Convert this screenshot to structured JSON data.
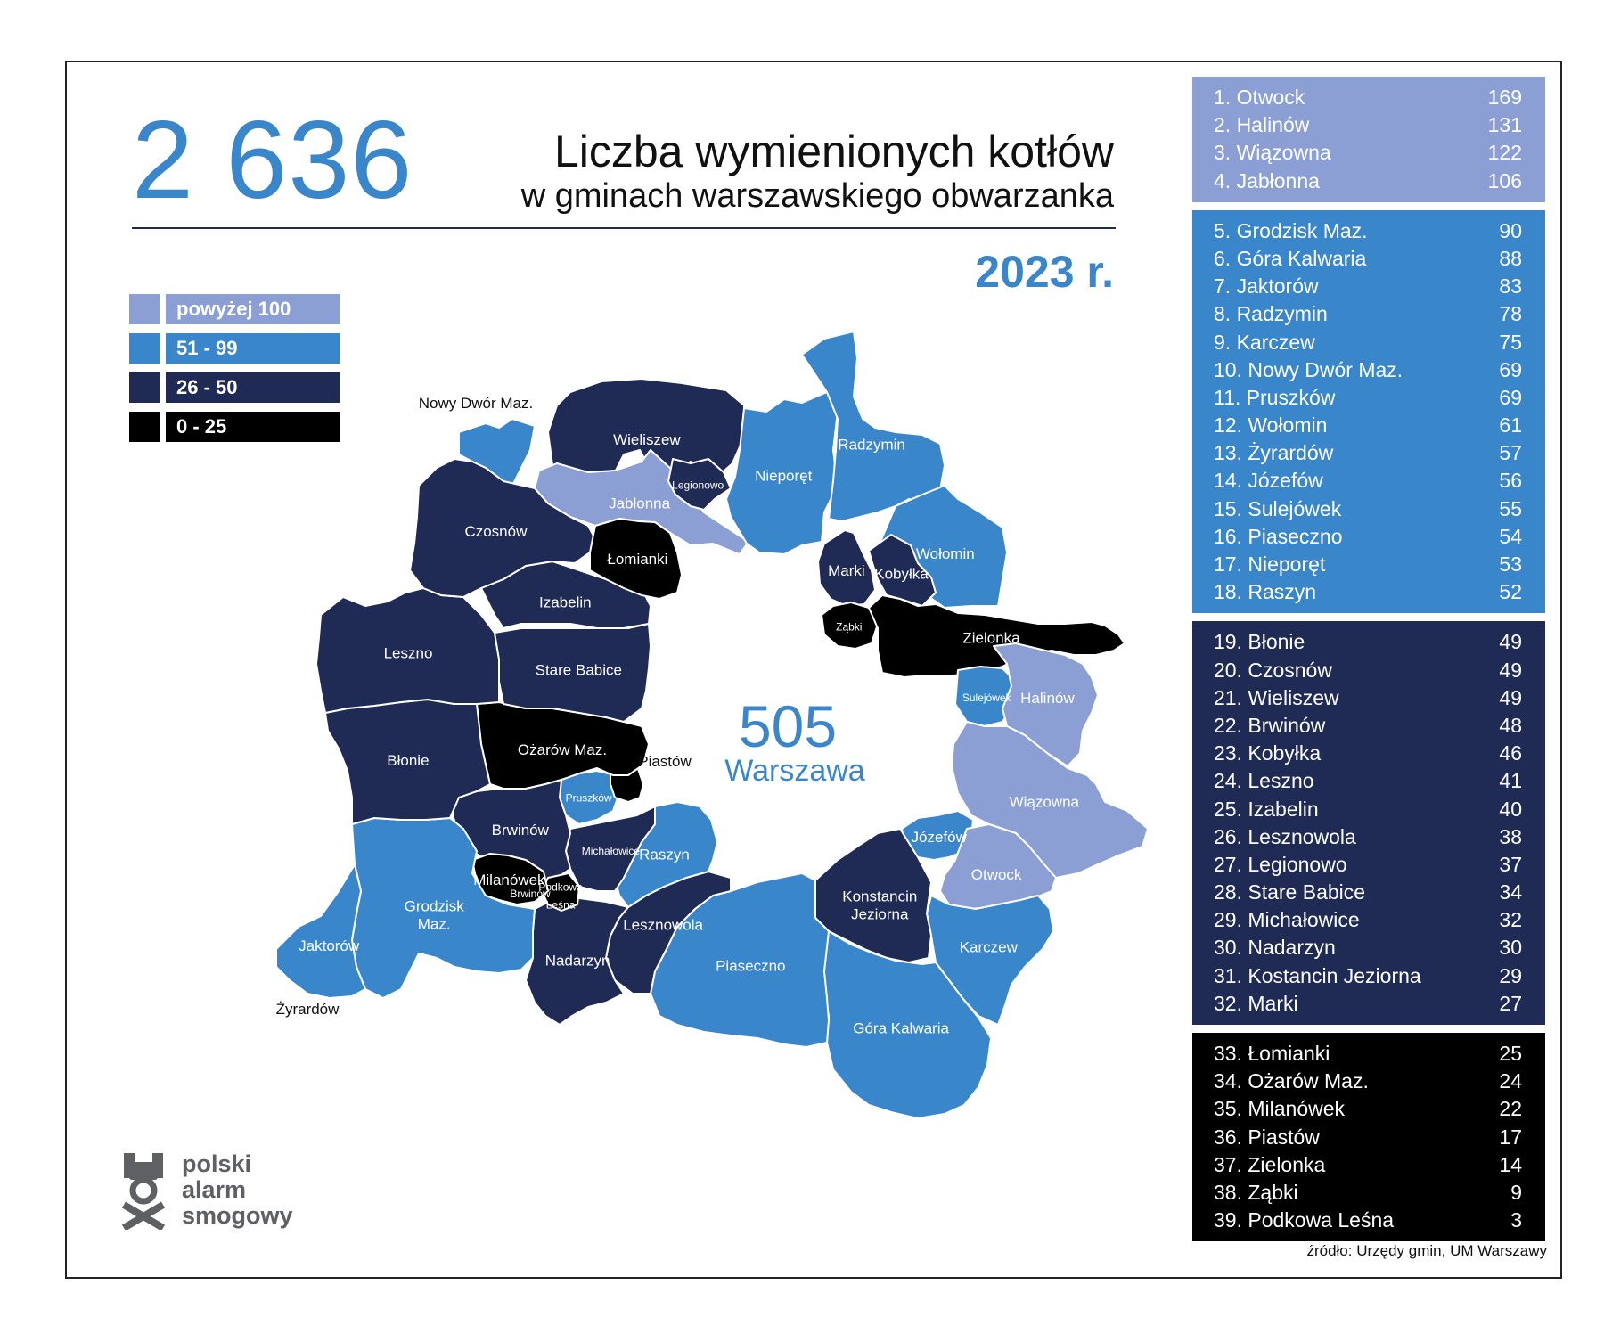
{
  "header": {
    "total": "2 636",
    "title_line1": "Liczba wymienionych kotłów",
    "title_line2": "w gminach warszawskiego obwarzanka",
    "year": "2023 r."
  },
  "colors": {
    "above100": "#8b9fd4",
    "r51_99": "#3a86cb",
    "r26_50": "#1f2a55",
    "r0_25": "#000000",
    "accent": "#3a86cb"
  },
  "legend": [
    {
      "label": "powyżej 100",
      "color": "#8b9fd4"
    },
    {
      "label": "51 - 99",
      "color": "#3a86cb"
    },
    {
      "label": "26 - 50",
      "color": "#1f2a55"
    },
    {
      "label": "0 - 25",
      "color": "#000000"
    }
  ],
  "ranking": [
    {
      "group": "powyżej 100",
      "color": "#8b9fd4",
      "items": [
        {
          "name": "1. Otwock",
          "value": "169"
        },
        {
          "name": "2. Halinów",
          "value": "131"
        },
        {
          "name": "3. Wiązowna",
          "value": "122"
        },
        {
          "name": "4. Jabłonna",
          "value": "106"
        }
      ]
    },
    {
      "group": "51 - 99",
      "color": "#3a86cb",
      "items": [
        {
          "name": "5. Grodzisk Maz.",
          "value": "90"
        },
        {
          "name": "6. Góra Kalwaria",
          "value": "88"
        },
        {
          "name": "7. Jaktorów",
          "value": "83"
        },
        {
          "name": "8. Radzymin",
          "value": "78"
        },
        {
          "name": "9. Karczew",
          "value": "75"
        },
        {
          "name": "10. Nowy Dwór Maz.",
          "value": "69"
        },
        {
          "name": "11. Pruszków",
          "value": "69"
        },
        {
          "name": "12. Wołomin",
          "value": "61"
        },
        {
          "name": "13. Żyrardów",
          "value": "57"
        },
        {
          "name": "14. Józefów",
          "value": "56"
        },
        {
          "name": "15. Sulejówek",
          "value": "55"
        },
        {
          "name": "16. Piaseczno",
          "value": "54"
        },
        {
          "name": "17. Nieporęt",
          "value": "53"
        },
        {
          "name": "18. Raszyn",
          "value": "52"
        }
      ]
    },
    {
      "group": "26 - 50",
      "color": "#1f2a55",
      "items": [
        {
          "name": "19. Błonie",
          "value": "49"
        },
        {
          "name": "20. Czosnów",
          "value": "49"
        },
        {
          "name": "21. Wieliszew",
          "value": "49"
        },
        {
          "name": "22. Brwinów",
          "value": "48"
        },
        {
          "name": "23. Kobyłka",
          "value": "46"
        },
        {
          "name": "24. Leszno",
          "value": "41"
        },
        {
          "name": "25. Izabelin",
          "value": "40"
        },
        {
          "name": "26. Lesznowola",
          "value": "38"
        },
        {
          "name": "27. Legionowo",
          "value": "37"
        },
        {
          "name": "28. Stare Babice",
          "value": "34"
        },
        {
          "name": "29. Michałowice",
          "value": "32"
        },
        {
          "name": "30. Nadarzyn",
          "value": "30"
        },
        {
          "name": "31. Kostancin Jeziorna",
          "value": "29"
        },
        {
          "name": "32. Marki",
          "value": "27"
        }
      ]
    },
    {
      "group": "0 - 25",
      "color": "#000000",
      "items": [
        {
          "name": "33. Łomianki",
          "value": "25"
        },
        {
          "name": "34. Ożarów Maz.",
          "value": "24"
        },
        {
          "name": "35. Milanówek",
          "value": "22"
        },
        {
          "name": "36. Piastów",
          "value": "17"
        },
        {
          "name": "37. Zielonka",
          "value": "14"
        },
        {
          "name": "38. Ząbki",
          "value": "9"
        },
        {
          "name": "39. Podkowa Leśna",
          "value": "3"
        }
      ]
    }
  ],
  "map": {
    "center_value": "505",
    "center_name": "Warszawa",
    "regions": [
      {
        "id": "nowy-dwor",
        "label": "",
        "cat": "r51_99"
      },
      {
        "id": "wieliszew",
        "label": "Wieliszew",
        "cat": "r26_50"
      },
      {
        "id": "jablonna",
        "label": "Jabłonna",
        "cat": "above100"
      },
      {
        "id": "legionowo",
        "label": "Legionowo",
        "cat": "r26_50"
      },
      {
        "id": "nieporet",
        "label": "Nieporęt",
        "cat": "r51_99"
      },
      {
        "id": "radzymin",
        "label": "Radzymin",
        "cat": "r51_99"
      },
      {
        "id": "wolomin",
        "label": "Wołomin",
        "cat": "r51_99"
      },
      {
        "id": "marki",
        "label": "Marki",
        "cat": "r26_50"
      },
      {
        "id": "kobylka",
        "label": "Kobyłka",
        "cat": "r26_50"
      },
      {
        "id": "zabki",
        "label": "Ząbki",
        "cat": "r0_25"
      },
      {
        "id": "zielonka",
        "label": "Zielonka",
        "cat": "r0_25"
      },
      {
        "id": "sulejowek",
        "label": "Sulejówek",
        "cat": "r51_99"
      },
      {
        "id": "halinow",
        "label": "Halinów",
        "cat": "above100"
      },
      {
        "id": "wiazowna",
        "label": "Wiązowna",
        "cat": "above100"
      },
      {
        "id": "jozefow",
        "label": "Józefów",
        "cat": "r51_99"
      },
      {
        "id": "otwock",
        "label": "Otwock",
        "cat": "above100"
      },
      {
        "id": "karczew",
        "label": "Karczew",
        "cat": "r51_99"
      },
      {
        "id": "konstancin",
        "label": "Konstancin\nJeziorna",
        "cat": "r26_50"
      },
      {
        "id": "gora-kalwaria",
        "label": "Góra Kalwaria",
        "cat": "r51_99"
      },
      {
        "id": "piaseczno",
        "label": "Piaseczno",
        "cat": "r51_99"
      },
      {
        "id": "lesznowola",
        "label": "Lesznowola",
        "cat": "r26_50"
      },
      {
        "id": "raszyn",
        "label": "Raszyn",
        "cat": "r51_99"
      },
      {
        "id": "nadarzyn",
        "label": "Nadarzyn",
        "cat": "r26_50"
      },
      {
        "id": "michalowice",
        "label": "Michałowice",
        "cat": "r26_50"
      },
      {
        "id": "pruszkow",
        "label": "Pruszków",
        "cat": "r51_99"
      },
      {
        "id": "piastow",
        "label": "",
        "cat": "r0_25"
      },
      {
        "id": "ozarow",
        "label": "Ożarów Maz.",
        "cat": "r0_25"
      },
      {
        "id": "brwinow",
        "label": "Brwinów",
        "cat": "r26_50"
      },
      {
        "id": "podkowa",
        "label": "Podkowa\nLeśna",
        "cat": "r0_25"
      },
      {
        "id": "milanowek",
        "label": "Milanówek",
        "cat": "r0_25"
      },
      {
        "id": "grodzisk",
        "label": "Grodzisk\nMaz.",
        "cat": "r51_99"
      },
      {
        "id": "jaktorow",
        "label": "Jaktorów",
        "cat": "r51_99"
      },
      {
        "id": "blonie",
        "label": "Błonie",
        "cat": "r26_50"
      },
      {
        "id": "leszno",
        "label": "Leszno",
        "cat": "r26_50"
      },
      {
        "id": "izabelin",
        "label": "Izabelin",
        "cat": "r26_50"
      },
      {
        "id": "stare-babice",
        "label": "Stare Babice",
        "cat": "r26_50"
      },
      {
        "id": "czosnow",
        "label": "Czosnów",
        "cat": "r26_50"
      },
      {
        "id": "lomianki",
        "label": "Łomianki",
        "cat": "r0_25"
      }
    ],
    "outside_labels": {
      "nowy_dwor": "Nowy Dwór Maz.",
      "piastow": "Piastów",
      "zyrardow": "Żyrardów",
      "brwinow_small": "Brwinów"
    }
  },
  "logo": {
    "line1": "polski",
    "line2": "alarm",
    "line3": "smogowy"
  },
  "source": "źródło: Urzędy gmin, UM Warszawy"
}
